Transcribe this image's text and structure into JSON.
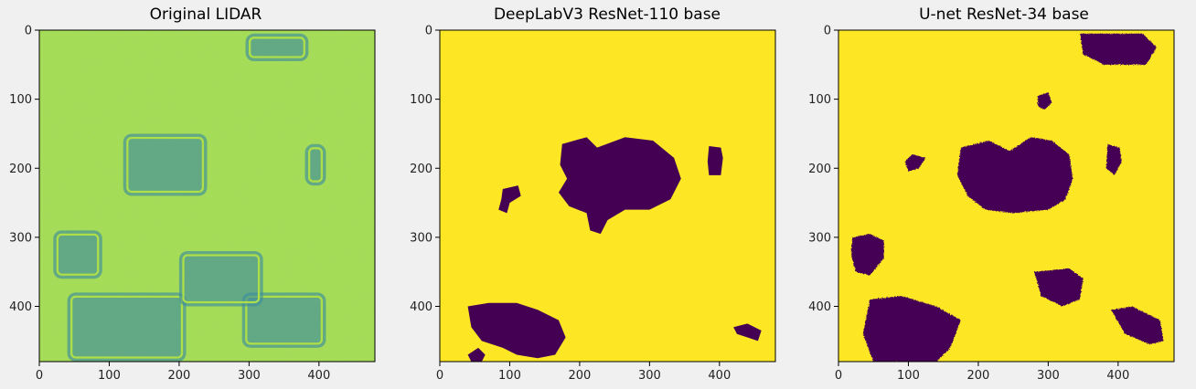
{
  "chart_data": [
    {
      "type": "heatmap",
      "title": "Original LIDAR",
      "xlabel": "",
      "ylabel": "",
      "xlim": [
        0,
        480
      ],
      "ylim": [
        480,
        0
      ],
      "x_ticks": [
        0,
        100,
        200,
        300,
        400
      ],
      "y_ticks": [
        0,
        100,
        200,
        300,
        400
      ],
      "colormap": "viridis",
      "image_style": "lidar",
      "colors": {
        "low": "#3e8e9c",
        "mid": "#49b98b",
        "high": "#bde93d"
      },
      "features": [
        {
          "shape": "rect",
          "x": 295,
          "y": 5,
          "w": 90,
          "h": 40
        },
        {
          "shape": "rect",
          "x": 120,
          "y": 150,
          "w": 120,
          "h": 90
        },
        {
          "shape": "rect",
          "x": 20,
          "y": 290,
          "w": 70,
          "h": 70
        },
        {
          "shape": "rect",
          "x": 40,
          "y": 380,
          "w": 170,
          "h": 100
        },
        {
          "shape": "rect",
          "x": 290,
          "y": 380,
          "w": 120,
          "h": 80
        },
        {
          "shape": "rect",
          "x": 200,
          "y": 320,
          "w": 120,
          "h": 80
        },
        {
          "shape": "rect",
          "x": 380,
          "y": 165,
          "w": 30,
          "h": 60
        }
      ]
    },
    {
      "type": "heatmap",
      "title": "DeepLabV3 ResNet-110 base",
      "xlabel": "",
      "ylabel": "",
      "xlim": [
        0,
        480
      ],
      "ylim": [
        480,
        0
      ],
      "x_ticks": [
        0,
        100,
        200,
        300,
        400
      ],
      "y_ticks": [
        0,
        100,
        200,
        300,
        400
      ],
      "colormap": "viridis",
      "image_style": "mask",
      "colors": {
        "background": "#fde725",
        "foreground": "#440154"
      },
      "regions": [
        {
          "points": [
            [
              175,
              165
            ],
            [
              210,
              155
            ],
            [
              225,
              170
            ],
            [
              265,
              155
            ],
            [
              305,
              160
            ],
            [
              335,
              185
            ],
            [
              345,
              215
            ],
            [
              330,
              245
            ],
            [
              300,
              260
            ],
            [
              265,
              260
            ],
            [
              240,
              275
            ],
            [
              230,
              295
            ],
            [
              215,
              290
            ],
            [
              210,
              265
            ],
            [
              185,
              255
            ],
            [
              170,
              235
            ],
            [
              182,
              215
            ],
            [
              172,
              195
            ]
          ]
        },
        {
          "points": [
            [
              90,
              230
            ],
            [
              112,
              225
            ],
            [
              116,
              240
            ],
            [
              100,
              250
            ],
            [
              96,
              265
            ],
            [
              84,
              260
            ],
            [
              88,
              245
            ]
          ]
        },
        {
          "points": [
            [
              385,
              168
            ],
            [
              402,
              170
            ],
            [
              405,
              185
            ],
            [
              402,
              210
            ],
            [
              385,
              210
            ],
            [
              383,
              190
            ]
          ]
        },
        {
          "points": [
            [
              40,
              400
            ],
            [
              70,
              395
            ],
            [
              110,
              395
            ],
            [
              140,
              405
            ],
            [
              170,
              420
            ],
            [
              180,
              445
            ],
            [
              165,
              470
            ],
            [
              140,
              475
            ],
            [
              110,
              470
            ],
            [
              90,
              460
            ],
            [
              60,
              450
            ],
            [
              45,
              430
            ]
          ]
        },
        {
          "points": [
            [
              40,
              470
            ],
            [
              55,
              460
            ],
            [
              65,
              470
            ],
            [
              60,
              480
            ],
            [
              45,
              480
            ]
          ]
        },
        {
          "points": [
            [
              420,
              430
            ],
            [
              440,
              425
            ],
            [
              460,
              435
            ],
            [
              455,
              450
            ],
            [
              440,
              445
            ],
            [
              425,
              440
            ]
          ]
        }
      ]
    },
    {
      "type": "heatmap",
      "title": "U-net ResNet-34 base",
      "xlabel": "",
      "ylabel": "",
      "xlim": [
        0,
        480
      ],
      "ylim": [
        480,
        0
      ],
      "x_ticks": [
        0,
        100,
        200,
        300,
        400
      ],
      "y_ticks": [
        0,
        100,
        200,
        300,
        400
      ],
      "colormap": "viridis",
      "image_style": "mask",
      "colors": {
        "background": "#fde725",
        "foreground": "#440154"
      },
      "regions": [
        {
          "points": [
            [
              345,
              5
            ],
            [
              435,
              5
            ],
            [
              455,
              25
            ],
            [
              440,
              50
            ],
            [
              380,
              50
            ],
            [
              350,
              35
            ]
          ]
        },
        {
          "points": [
            [
              175,
              170
            ],
            [
              215,
              160
            ],
            [
              245,
              175
            ],
            [
              275,
              155
            ],
            [
              305,
              160
            ],
            [
              330,
              180
            ],
            [
              335,
              215
            ],
            [
              325,
              245
            ],
            [
              300,
              260
            ],
            [
              250,
              265
            ],
            [
              210,
              260
            ],
            [
              185,
              240
            ],
            [
              170,
              210
            ]
          ]
        },
        {
          "points": [
            [
              20,
              300
            ],
            [
              45,
              295
            ],
            [
              65,
              305
            ],
            [
              65,
              330
            ],
            [
              45,
              355
            ],
            [
              25,
              350
            ],
            [
              18,
              325
            ]
          ]
        },
        {
          "points": [
            [
              45,
              390
            ],
            [
              90,
              385
            ],
            [
              140,
              400
            ],
            [
              175,
              420
            ],
            [
              160,
              460
            ],
            [
              140,
              480
            ],
            [
              50,
              480
            ],
            [
              35,
              440
            ]
          ]
        },
        {
          "points": [
            [
              280,
              350
            ],
            [
              330,
              345
            ],
            [
              350,
              360
            ],
            [
              345,
              390
            ],
            [
              320,
              400
            ],
            [
              290,
              385
            ]
          ]
        },
        {
          "points": [
            [
              390,
              405
            ],
            [
              420,
              400
            ],
            [
              460,
              420
            ],
            [
              465,
              450
            ],
            [
              445,
              455
            ],
            [
              410,
              440
            ]
          ]
        },
        {
          "points": [
            [
              385,
              165
            ],
            [
              402,
              170
            ],
            [
              405,
              190
            ],
            [
              395,
              210
            ],
            [
              383,
              200
            ]
          ]
        },
        {
          "points": [
            [
              285,
              95
            ],
            [
              300,
              90
            ],
            [
              305,
              105
            ],
            [
              295,
              115
            ],
            [
              285,
              110
            ]
          ]
        },
        {
          "points": [
            [
              105,
              180
            ],
            [
              125,
              185
            ],
            [
              115,
              200
            ],
            [
              100,
              205
            ],
            [
              95,
              190
            ]
          ]
        }
      ]
    }
  ]
}
